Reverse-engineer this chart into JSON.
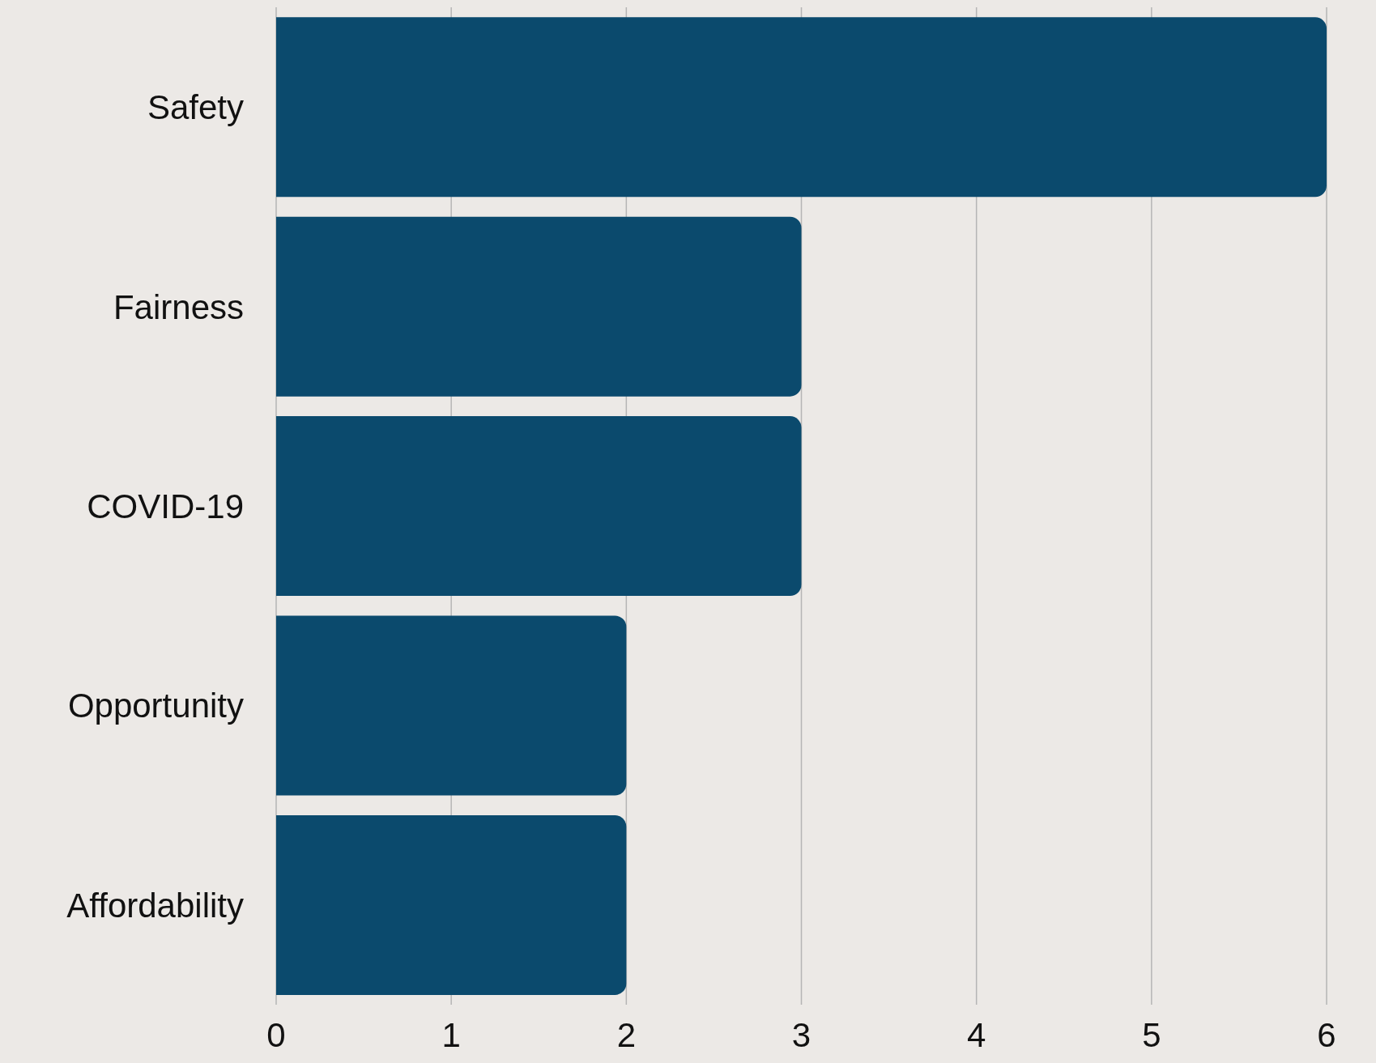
{
  "chart_data": {
    "type": "bar",
    "orientation": "horizontal",
    "categories": [
      "Safety",
      "Fairness",
      "COVID-19",
      "Opportunity",
      "Affordability"
    ],
    "values": [
      6,
      3,
      3,
      2,
      2
    ],
    "color": "#0b4a6d",
    "xlim": [
      0,
      6
    ],
    "xticks": [
      0,
      1,
      2,
      3,
      4,
      5,
      6
    ],
    "grid": "x"
  }
}
